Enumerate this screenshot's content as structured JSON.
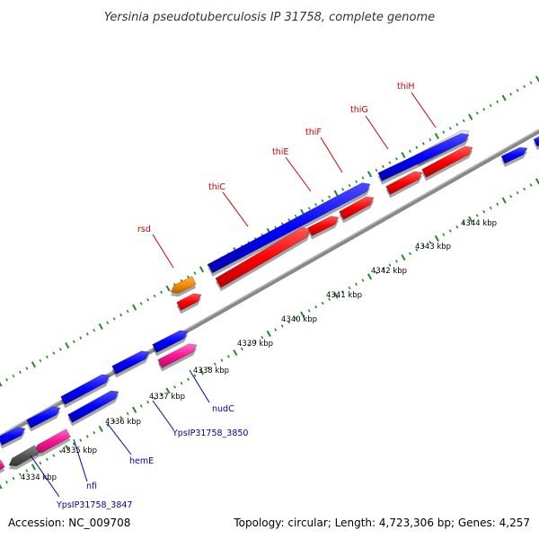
{
  "title": "Yersinia pseudotuberculosis IP 31758, complete genome",
  "footer": {
    "accession": "Accession: NC_009708",
    "topology": "Topology: circular; Length: 4,723,306 bp; Genes: 4,257"
  },
  "scale_labels": [
    {
      "name": "4334 kbp",
      "text": "4334 kbp"
    },
    {
      "name": "4335 kbp",
      "text": "4335 kbp"
    },
    {
      "name": "4336 kbp",
      "text": "4336 kbp"
    },
    {
      "name": "4337 kbp",
      "text": "4337 kbp"
    },
    {
      "name": "4338 kbp",
      "text": "4338 kbp"
    },
    {
      "name": "4339 kbp",
      "text": "4339 kbp"
    },
    {
      "name": "4340 kbp",
      "text": "4340 kbp"
    },
    {
      "name": "4341 kbp",
      "text": "4341 kbp"
    },
    {
      "name": "4342 kbp",
      "text": "4342 kbp"
    },
    {
      "name": "4343 kbp",
      "text": "4343 kbp"
    },
    {
      "name": "4344 kbp",
      "text": "4344 kbp"
    }
  ],
  "gene_labels_top": [
    {
      "text": "rsd",
      "color": "#cc0000"
    },
    {
      "text": "thiC",
      "color": "#cc0000"
    },
    {
      "text": "thiE",
      "color": "#cc0000"
    },
    {
      "text": "thiF",
      "color": "#cc0000"
    },
    {
      "text": "thiG",
      "color": "#cc0000"
    },
    {
      "text": "thiH",
      "color": "#cc0000"
    }
  ],
  "gene_labels_bottom": [
    {
      "text": "YpsIP31758_3847",
      "color": "#0000aa"
    },
    {
      "text": "nfi",
      "color": "#0000aa"
    },
    {
      "text": "hemE",
      "color": "#0000aa"
    },
    {
      "text": "YpsIP31758_3850",
      "color": "#0000aa"
    },
    {
      "text": "nudC",
      "color": "#0000aa"
    }
  ],
  "colors": {
    "forward_cds": "#0000ff",
    "reverse_cds": "#ff0000",
    "rrna_like": "#ff1493",
    "orange_feature": "#ff8c00",
    "grey_feature": "#555555",
    "backbone": "#888888",
    "ticks": "#228b22"
  }
}
